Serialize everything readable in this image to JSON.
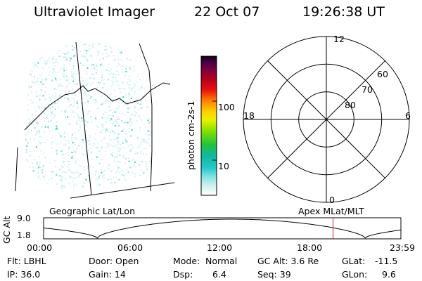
{
  "header": {
    "instrument": "Ultraviolet Imager",
    "date": "22 Oct 07",
    "time": "19:26:38 UT"
  },
  "geo_panel": {
    "label": "Geographic Lat/Lon"
  },
  "colorbar": {
    "unit": "photon cm-2s-1",
    "ticks": [
      {
        "label": "100",
        "value": 100
      },
      {
        "label": "10",
        "value": 10
      }
    ],
    "scale": "log"
  },
  "polar_plot": {
    "label": "Apex MLat/MLT",
    "mlt_labels": {
      "top": "12",
      "left": "18",
      "right": "6",
      "bottom": "0"
    },
    "mlat_labels": [
      "60",
      "70",
      "80"
    ]
  },
  "altitude_plot": {
    "ylabel": "GC Alt",
    "y_ticks": [
      "9.0",
      "1.8"
    ],
    "x_ticks": [
      "00:00",
      "06:00",
      "12:00",
      "18:00",
      "23:59"
    ],
    "current_time_hours": 19.44,
    "current_marker_color": "#d02020"
  },
  "info": {
    "row1": {
      "flt": "Flt: LBHL",
      "door": "Door: Open",
      "mode_label": "Mode:",
      "mode_value": "Normal",
      "gcalt": "GC Alt: 3.6 Re",
      "glat_label": "GLat:",
      "glat_value": "-11.5"
    },
    "row2": {
      "ip": "IP: 36.0",
      "gain": "Gain: 14",
      "dsp_label": "Dsp:",
      "dsp_value": "6.4",
      "seq": "Seq: 39",
      "glon_label": "GLon:",
      "glon_value": "9.6"
    }
  }
}
